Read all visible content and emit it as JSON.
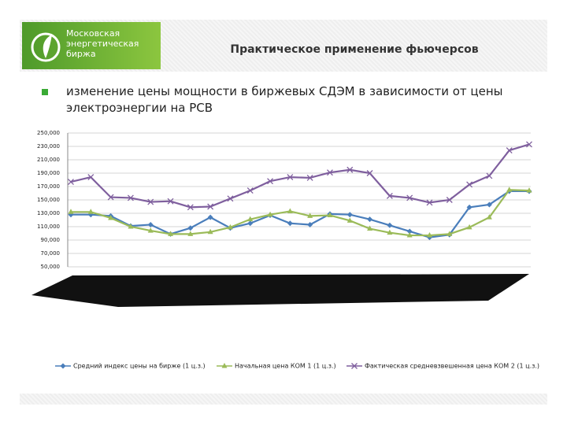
{
  "header": {
    "logo": [
      "Московская",
      "энергетическая",
      "биржа"
    ],
    "title": "Практическое применение фьючерсов"
  },
  "bullet": "изменение цены мощности в биржевых СДЭМ в зависимости от цены электроэнергии на РСВ",
  "chart_data": {
    "type": "line",
    "categories": [
      null,
      null,
      null,
      null,
      null,
      null,
      null,
      null,
      null,
      null,
      null,
      null,
      null,
      null,
      null,
      null,
      null,
      null,
      null,
      null,
      null,
      null,
      null,
      null
    ],
    "series": [
      {
        "name": "Средний индекс цены на бирже (1 ц.з.)",
        "color": "#4a7ebb",
        "marker": "diamond",
        "values": [
          128000,
          128000,
          126000,
          111000,
          113000,
          99000,
          108000,
          124000,
          108000,
          115000,
          127000,
          115000,
          113000,
          129000,
          128000,
          121000,
          112000,
          103000,
          94000,
          98000,
          139000,
          143000,
          163000,
          163000
        ]
      },
      {
        "name": "Начальная цена КОМ 1 (1 ц.з.)",
        "color": "#9bbb59",
        "marker": "triangle",
        "values": [
          132000,
          132000,
          123000,
          110000,
          104000,
          99000,
          99000,
          102000,
          109000,
          121000,
          128000,
          133000,
          126000,
          127000,
          119000,
          107000,
          101000,
          97000,
          97000,
          99000,
          109000,
          124000,
          165000,
          164000
        ]
      },
      {
        "name": "Фактическая средневзвешенная цена КОМ 2 (1 ц.з.)",
        "color": "#7f5f9e",
        "marker": "x",
        "values": [
          177000,
          184000,
          154000,
          153000,
          147000,
          148000,
          139000,
          140000,
          152000,
          164000,
          178000,
          184000,
          183000,
          191000,
          195000,
          190000,
          156000,
          153000,
          146000,
          150000,
          173000,
          186000,
          224000,
          233000
        ]
      }
    ],
    "ylim": [
      50000,
      250000
    ],
    "yticks": [
      {
        "value": 50000,
        "label": "50,000"
      },
      {
        "value": 70000,
        "label": "70,000"
      },
      {
        "value": 90000,
        "label": "90,000"
      },
      {
        "value": 110000,
        "label": "110,000"
      },
      {
        "value": 130000,
        "label": "130,000"
      },
      {
        "value": 150000,
        "label": "150,000"
      },
      {
        "value": 170000,
        "label": "170,000"
      },
      {
        "value": 190000,
        "label": "190,000"
      },
      {
        "value": 210000,
        "label": "210,000"
      },
      {
        "value": 230000,
        "label": "230,000"
      },
      {
        "value": 250000,
        "label": "250,000"
      }
    ],
    "grid": true,
    "legend": "bottom"
  }
}
